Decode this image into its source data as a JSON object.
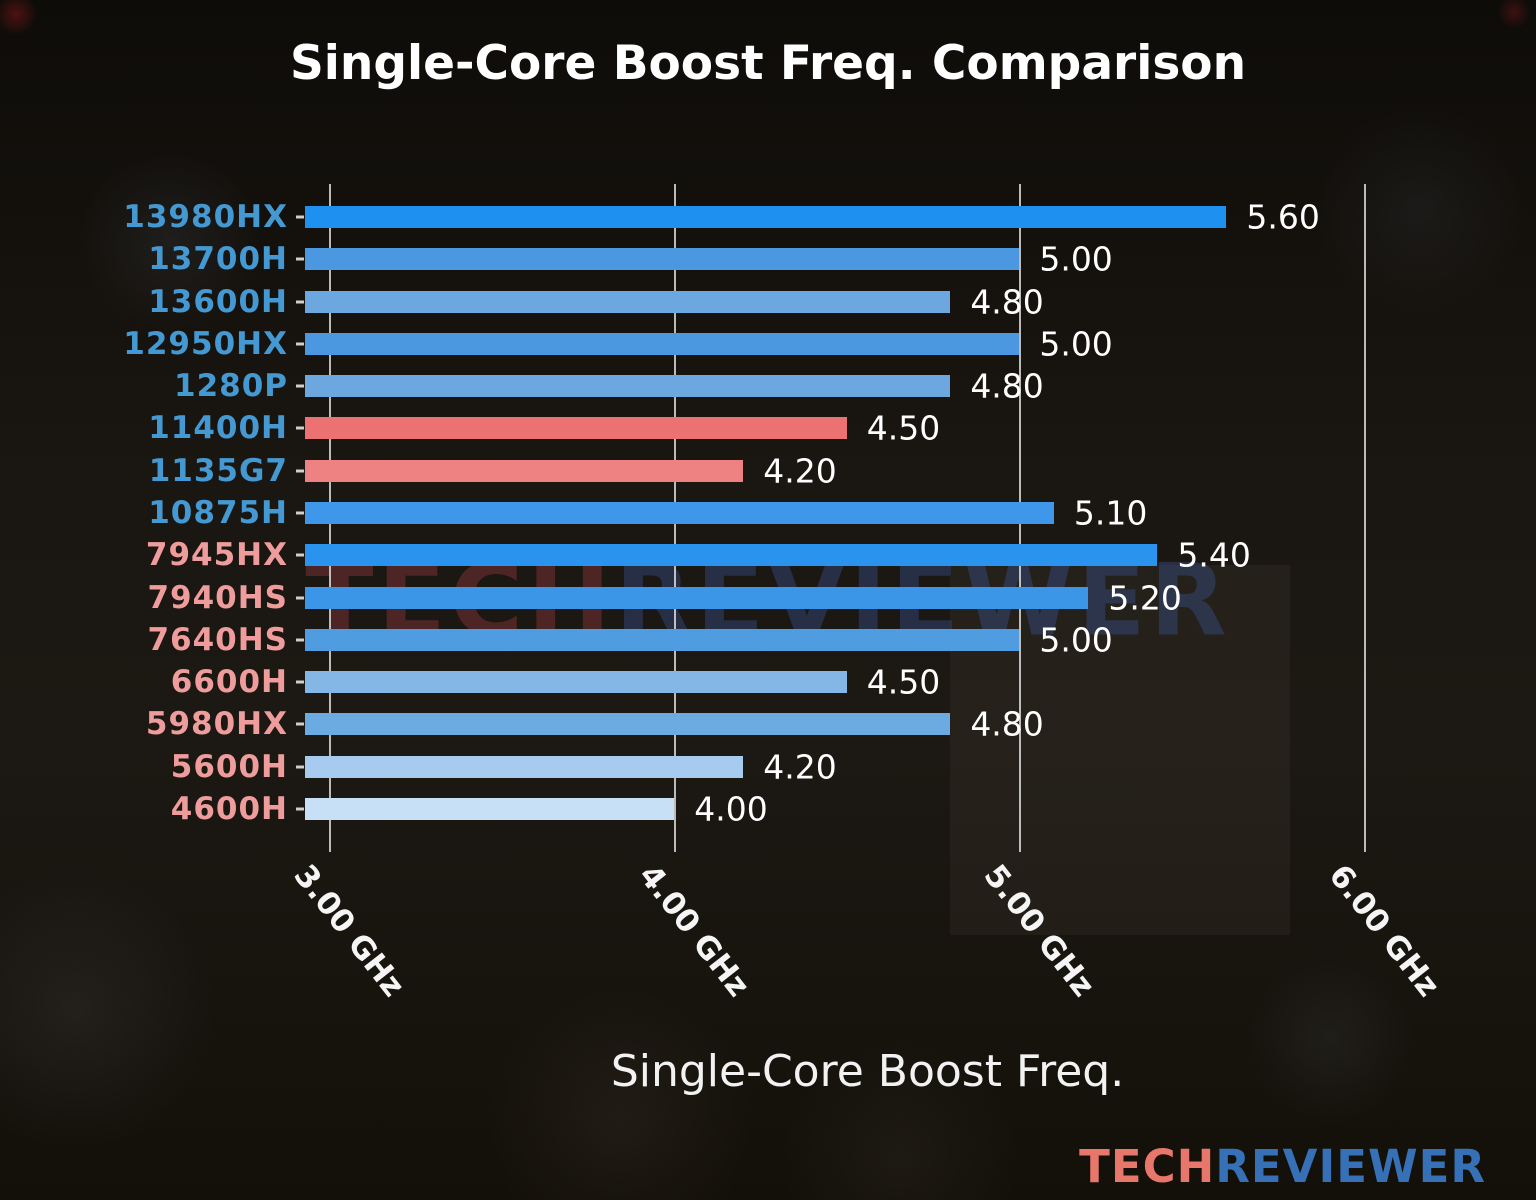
{
  "title": "Single-Core Boost Freq. Comparison",
  "watermark": {
    "part1": "TECH",
    "part2": "REVIEWER"
  },
  "logo": {
    "part1": "TECH",
    "part2": "REVIEWER"
  },
  "colors": {
    "intel_label": "#4599d2",
    "amd_label": "#ef9c9c",
    "grid": "#d8d8d8",
    "value_text": "#ffffff",
    "logo_tech": "#e8776b",
    "logo_reviewer": "#3671b8",
    "watermark_tech": "rgba(150,60,66,0.40)",
    "watermark_reviewer": "rgba(58,86,150,0.40)"
  },
  "chart_data": {
    "type": "bar",
    "orientation": "horizontal",
    "title": "Single-Core Boost Freq. Comparison",
    "xlabel": "Single-Core Boost Freq.",
    "unit": "GHz",
    "grid": true,
    "xlim": [
      2.93,
      6.19
    ],
    "xticks": [
      {
        "value": 3.0,
        "label": "3.00 GHz"
      },
      {
        "value": 4.0,
        "label": "4.00 GHz"
      },
      {
        "value": 5.0,
        "label": "5.00 GHz"
      },
      {
        "value": 6.0,
        "label": "6.00 GHz"
      }
    ],
    "rows": [
      {
        "label": "13980HX",
        "value": 5.6,
        "display": "5.60",
        "label_color": "#4599d2",
        "bar_color": "#1e90ef"
      },
      {
        "label": "13700H",
        "value": 5.0,
        "display": "5.00",
        "label_color": "#4599d2",
        "bar_color": "#4b97e0"
      },
      {
        "label": "13600H",
        "value": 4.8,
        "display": "4.80",
        "label_color": "#4599d2",
        "bar_color": "#6ca7e0"
      },
      {
        "label": "12950HX",
        "value": 5.0,
        "display": "5.00",
        "label_color": "#4599d2",
        "bar_color": "#4b97e0"
      },
      {
        "label": "1280P",
        "value": 4.8,
        "display": "4.80",
        "label_color": "#4599d2",
        "bar_color": "#6ca7e0"
      },
      {
        "label": "11400H",
        "value": 4.5,
        "display": "4.50",
        "label_color": "#4599d2",
        "bar_color": "#ec7272"
      },
      {
        "label": "1135G7",
        "value": 4.2,
        "display": "4.20",
        "label_color": "#4599d2",
        "bar_color": "#ee8282"
      },
      {
        "label": "10875H",
        "value": 5.1,
        "display": "5.10",
        "label_color": "#4599d2",
        "bar_color": "#3e97e8"
      },
      {
        "label": "7945HX",
        "value": 5.4,
        "display": "5.40",
        "label_color": "#ef9c9c",
        "bar_color": "#2a93ee"
      },
      {
        "label": "7940HS",
        "value": 5.2,
        "display": "5.20",
        "label_color": "#ef9c9c",
        "bar_color": "#3c96e8"
      },
      {
        "label": "7640HS",
        "value": 5.0,
        "display": "5.00",
        "label_color": "#ef9c9c",
        "bar_color": "#4f9ce1"
      },
      {
        "label": "6600H",
        "value": 4.5,
        "display": "4.50",
        "label_color": "#ef9c9c",
        "bar_color": "#84b7e6"
      },
      {
        "label": "5980HX",
        "value": 4.8,
        "display": "4.80",
        "label_color": "#ef9c9c",
        "bar_color": "#6caae2"
      },
      {
        "label": "5600H",
        "value": 4.2,
        "display": "4.20",
        "label_color": "#ef9c9c",
        "bar_color": "#a7cbee"
      },
      {
        "label": "4600H",
        "value": 4.0,
        "display": "4.00",
        "label_color": "#ef9c9c",
        "bar_color": "#c8e0f6"
      }
    ]
  }
}
